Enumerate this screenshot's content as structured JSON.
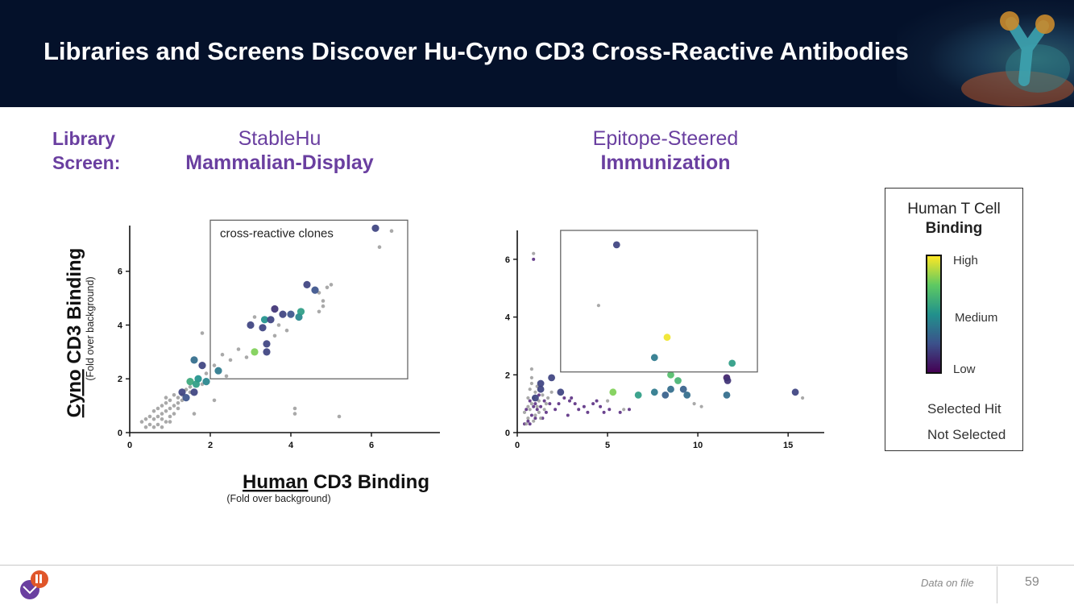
{
  "header": {
    "title": "Libraries and Screens Discover Hu-Cyno CD3 Cross-Reactive Antibodies"
  },
  "columns": {
    "library_label": "Library",
    "screen_label": "Screen:",
    "left": {
      "library": "StableHu",
      "screen": "Mammalian-Display"
    },
    "right": {
      "library": "Epitope-Steered",
      "screen": "Immunization"
    }
  },
  "legend": {
    "title_line1": "Human T Cell",
    "title_line2": "Binding",
    "high": "High",
    "medium": "Medium",
    "low": "Low",
    "selected": "Selected Hit",
    "not_selected": "Not Selected"
  },
  "colors": {
    "header_bg": "#04112a",
    "accent_purple": "#6a3fa0",
    "not_selected": "#9a9a9a",
    "colormap": [
      "#440154",
      "#3b528b",
      "#21918c",
      "#5ec962",
      "#fde725"
    ]
  },
  "footer": {
    "note": "Data on file",
    "page": "59"
  },
  "chart_data": [
    {
      "type": "scatter",
      "title": "",
      "xlabel_part1": "Human",
      "xlabel_part2": " CD3 Binding",
      "xlabel_sub": "(Fold over background)",
      "ylabel_part1": "Cyno",
      "ylabel_part2": " CD3 Binding",
      "ylabel_sub": "(Fold over background)",
      "xlim": [
        0,
        7.7
      ],
      "ylim": [
        0,
        7.7
      ],
      "xticks": [
        0,
        2,
        4,
        6
      ],
      "yticks": [
        0,
        2,
        4,
        6
      ],
      "annotation": "cross-reactive clones",
      "box": {
        "x": [
          2,
          6.9
        ],
        "y": [
          2,
          7.9
        ]
      },
      "series": [
        {
          "points": [
            [
              6.1,
              7.6,
              0.2
            ],
            [
              4.4,
              5.5,
              0.2
            ],
            [
              4.6,
              5.3,
              0.25
            ],
            [
              3.6,
              4.6,
              0.15
            ],
            [
              3.8,
              4.4,
              0.2
            ],
            [
              4.0,
              4.4,
              0.25
            ],
            [
              4.2,
              4.3,
              0.45
            ],
            [
              4.25,
              4.5,
              0.55
            ],
            [
              3.35,
              4.2,
              0.5
            ],
            [
              3.0,
              4.0,
              0.2
            ],
            [
              3.3,
              3.9,
              0.2
            ],
            [
              3.5,
              4.2,
              0.2
            ],
            [
              3.4,
              3.3,
              0.2
            ],
            [
              3.4,
              3.0,
              0.2
            ],
            [
              3.1,
              3.0,
              0.8
            ],
            [
              2.2,
              2.3,
              0.4
            ],
            [
              1.8,
              2.5,
              0.2
            ],
            [
              1.6,
              2.7,
              0.35
            ],
            [
              1.7,
              2.0,
              0.5
            ],
            [
              1.5,
              1.9,
              0.6
            ],
            [
              1.65,
              1.8,
              0.55
            ],
            [
              1.9,
              1.9,
              0.45
            ],
            [
              1.6,
              1.5,
              0.2
            ],
            [
              1.3,
              1.5,
              0.2
            ],
            [
              1.4,
              1.3,
              0.25
            ]
          ]
        },
        {
          "points": [
            [
              6.5,
              7.5
            ],
            [
              6.2,
              6.9
            ],
            [
              5.0,
              5.5
            ],
            [
              4.9,
              5.4
            ],
            [
              4.7,
              5.2
            ],
            [
              4.8,
              4.9
            ],
            [
              4.7,
              4.5
            ],
            [
              4.8,
              4.7
            ],
            [
              3.7,
              4.0
            ],
            [
              3.9,
              3.8
            ],
            [
              3.1,
              4.3
            ],
            [
              3.6,
              3.6
            ],
            [
              2.9,
              2.8
            ],
            [
              2.7,
              3.1
            ],
            [
              2.5,
              2.7
            ],
            [
              2.3,
              2.9
            ],
            [
              2.1,
              2.5
            ],
            [
              1.9,
              2.2
            ],
            [
              1.8,
              3.7
            ],
            [
              2.4,
              2.1
            ],
            [
              2.1,
              1.2
            ],
            [
              1.6,
              0.7
            ],
            [
              4.1,
              0.9
            ],
            [
              4.1,
              0.7
            ],
            [
              5.2,
              0.6
            ],
            [
              0.3,
              0.4
            ],
            [
              0.4,
              0.5
            ],
            [
              0.5,
              0.3
            ],
            [
              0.6,
              0.5
            ],
            [
              0.7,
              0.6
            ],
            [
              0.8,
              0.7
            ],
            [
              0.9,
              0.8
            ],
            [
              1.0,
              0.9
            ],
            [
              1.1,
              1.0
            ],
            [
              1.2,
              1.1
            ],
            [
              0.7,
              0.3
            ],
            [
              0.8,
              0.5
            ],
            [
              0.9,
              0.4
            ],
            [
              1.0,
              0.6
            ],
            [
              0.6,
              0.8
            ],
            [
              0.5,
              0.6
            ],
            [
              0.8,
              1.0
            ],
            [
              0.9,
              1.1
            ],
            [
              1.0,
              1.2
            ],
            [
              1.2,
              1.3
            ],
            [
              1.3,
              1.4
            ],
            [
              1.4,
              1.6
            ],
            [
              1.5,
              1.7
            ],
            [
              0.7,
              0.9
            ],
            [
              0.8,
              0.2
            ],
            [
              1.1,
              0.7
            ],
            [
              1.2,
              0.9
            ],
            [
              0.4,
              0.2
            ],
            [
              1.3,
              1.2
            ],
            [
              1.0,
              0.4
            ],
            [
              0.6,
              0.2
            ],
            [
              0.9,
              1.3
            ],
            [
              1.1,
              1.4
            ],
            [
              1.5,
              1.5
            ],
            [
              1.8,
              1.8
            ]
          ]
        }
      ]
    },
    {
      "type": "scatter",
      "title": "",
      "xlim": [
        0,
        17
      ],
      "ylim": [
        0,
        7
      ],
      "xticks": [
        0,
        5,
        10,
        15
      ],
      "yticks": [
        0,
        2,
        4,
        6
      ],
      "box": {
        "x": [
          2.4,
          13.3
        ],
        "y": [
          2.1,
          7.0
        ]
      },
      "series": [
        {
          "points": [
            [
              5.5,
              6.5,
              0.2
            ],
            [
              8.3,
              3.3,
              0.98
            ],
            [
              7.6,
              2.6,
              0.4
            ],
            [
              11.9,
              2.4,
              0.55
            ],
            [
              8.5,
              2.0,
              0.7
            ],
            [
              8.9,
              1.8,
              0.65
            ],
            [
              11.6,
              1.9,
              0.1
            ],
            [
              11.65,
              1.8,
              0.15
            ],
            [
              1.9,
              1.9,
              0.2
            ],
            [
              1.3,
              1.7,
              0.2
            ],
            [
              1.3,
              1.5,
              0.2
            ],
            [
              2.4,
              1.4,
              0.2
            ],
            [
              5.3,
              1.4,
              0.8
            ],
            [
              6.7,
              1.3,
              0.55
            ],
            [
              7.6,
              1.4,
              0.4
            ],
            [
              8.2,
              1.3,
              0.3
            ],
            [
              8.5,
              1.5,
              0.35
            ],
            [
              9.2,
              1.5,
              0.3
            ],
            [
              9.4,
              1.3,
              0.35
            ],
            [
              11.6,
              1.3,
              0.35
            ],
            [
              15.4,
              1.4,
              0.2
            ],
            [
              1.0,
              1.2,
              0.2
            ]
          ]
        },
        {
          "points": [
            [
              0.9,
              6.2
            ],
            [
              0.8,
              2.2
            ],
            [
              4.5,
              4.4
            ],
            [
              0.6,
              0.5
            ],
            [
              0.7,
              0.8
            ],
            [
              0.8,
              1.0
            ],
            [
              0.9,
              1.2
            ],
            [
              1.0,
              1.4
            ],
            [
              1.1,
              0.9
            ],
            [
              1.2,
              1.1
            ],
            [
              0.5,
              0.3
            ],
            [
              0.6,
              1.2
            ],
            [
              0.7,
              1.5
            ],
            [
              0.8,
              1.7
            ],
            [
              1.0,
              0.6
            ],
            [
              1.2,
              0.7
            ],
            [
              1.4,
              1.3
            ],
            [
              1.6,
              1.0
            ],
            [
              0.4,
              0.7
            ],
            [
              0.9,
              0.4
            ],
            [
              1.3,
              0.5
            ],
            [
              1.5,
              0.8
            ],
            [
              0.8,
              1.9
            ],
            [
              1.1,
              1.6
            ],
            [
              1.7,
              1.2
            ],
            [
              1.9,
              1.4
            ],
            [
              0.6,
              0.9
            ],
            [
              15.8,
              1.2
            ],
            [
              10.2,
              0.9
            ],
            [
              9.8,
              1.0
            ],
            [
              5.9,
              0.8
            ],
            [
              5.0,
              1.1
            ]
          ]
        },
        {
          "points": [
            [
              0.9,
              6.0
            ],
            [
              0.5,
              0.8
            ],
            [
              0.6,
              0.4
            ],
            [
              0.7,
              1.1
            ],
            [
              0.8,
              0.6
            ],
            [
              0.9,
              0.9
            ],
            [
              1.0,
              1.0
            ],
            [
              1.1,
              0.8
            ],
            [
              1.2,
              1.3
            ],
            [
              1.3,
              0.9
            ],
            [
              1.5,
              1.1
            ],
            [
              1.6,
              0.7
            ],
            [
              1.8,
              1.0
            ],
            [
              2.1,
              0.8
            ],
            [
              2.3,
              1.0
            ],
            [
              2.6,
              1.2
            ],
            [
              2.9,
              1.1
            ],
            [
              3.2,
              1.0
            ],
            [
              3.4,
              0.8
            ],
            [
              3.7,
              0.9
            ],
            [
              3.9,
              0.7
            ],
            [
              4.2,
              1.0
            ],
            [
              4.4,
              1.1
            ],
            [
              4.6,
              0.9
            ],
            [
              4.8,
              0.7
            ],
            [
              5.1,
              0.8
            ],
            [
              5.7,
              0.7
            ],
            [
              6.2,
              0.8
            ],
            [
              0.4,
              0.3
            ],
            [
              0.7,
              0.3
            ],
            [
              1.0,
              0.5
            ],
            [
              1.4,
              0.5
            ],
            [
              2.8,
              0.6
            ],
            [
              3.0,
              1.2
            ]
          ]
        }
      ]
    }
  ]
}
